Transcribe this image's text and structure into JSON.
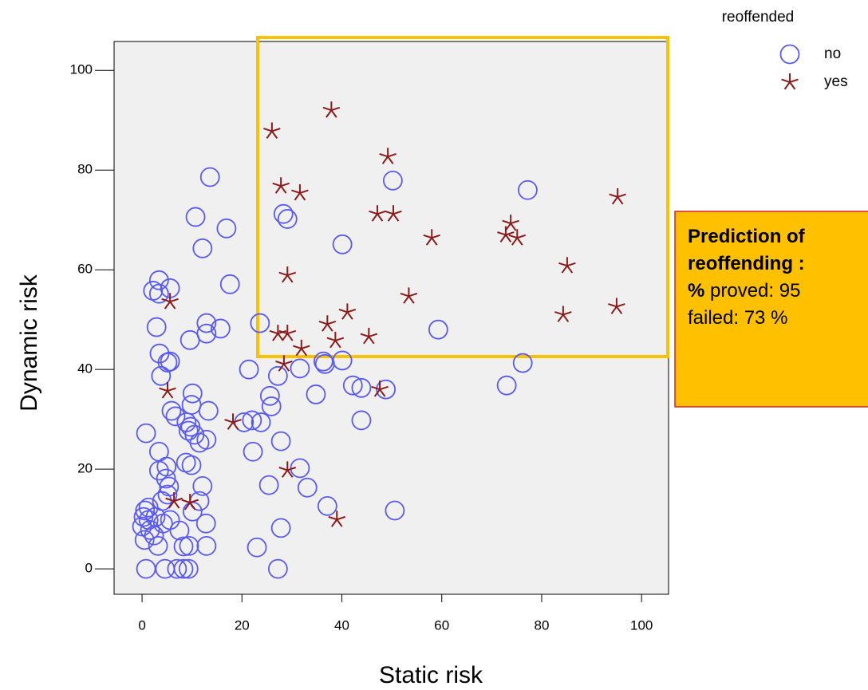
{
  "chart_data": {
    "type": "scatter",
    "x_label": "Static risk",
    "y_label": "Dynamic risk",
    "legend_title": "reoffended",
    "xlim": [
      -5.6,
      105.4
    ],
    "ylim": [
      -5.1,
      105.8
    ],
    "xticks": [
      0,
      20,
      40,
      60,
      80,
      100
    ],
    "yticks": [
      0,
      20,
      40,
      60,
      80,
      100
    ],
    "series": [
      {
        "name": "no",
        "color": "#5a5af0",
        "marker": "circle",
        "x": [
          13.6,
          50.2,
          77.2,
          10.7,
          28.3,
          29.1,
          16.9,
          40.1,
          12.1,
          3.4,
          17.6,
          5.6,
          2.2,
          3.4,
          2.9,
          12.9,
          23.6,
          15.7,
          12.9,
          59.3,
          9.6,
          3.5,
          5.1,
          5.6,
          36.3,
          36.6,
          40.1,
          76.2,
          3.8,
          21.4,
          27.2,
          31.6,
          42.2,
          43.9,
          48.8,
          73.0,
          10.1,
          25.6,
          34.8,
          9.9,
          25.9,
          5.9,
          6.7,
          13.3,
          8.9,
          9.7,
          9.3,
          22.0,
          23.8,
          20.4,
          43.9,
          0.8,
          10.5,
          11.5,
          12.9,
          27.8,
          22.2,
          3.4,
          8.8,
          9.9,
          4.9,
          3.4,
          31.6,
          4.8,
          5.4,
          12.1,
          25.4,
          33.1,
          5.1,
          11.5,
          1.3,
          4.0,
          0.3,
          0.6,
          1.3,
          2.7,
          10.1,
          12.8,
          37.1,
          50.6,
          5.6,
          4.2,
          0,
          1.6,
          7.5,
          27.8,
          2.4,
          0.5,
          3.2,
          8.3,
          9.4,
          12.9,
          23.0,
          0.8,
          4.6,
          7.0,
          8.3,
          9.3,
          27.2
        ],
        "y": [
          78.6,
          77.9,
          76.0,
          70.6,
          71.2,
          70.2,
          68.3,
          65.1,
          64.3,
          57.9,
          57.1,
          56.3,
          55.8,
          55.2,
          48.5,
          49.3,
          49.3,
          48.2,
          47.2,
          48.0,
          45.9,
          43.2,
          41.4,
          41.6,
          41.6,
          41.1,
          41.8,
          41.3,
          38.7,
          40.0,
          38.7,
          40.2,
          36.8,
          36.3,
          36.0,
          36.8,
          35.2,
          34.7,
          35.0,
          32.9,
          32.6,
          31.7,
          30.6,
          31.7,
          29.4,
          28.5,
          27.7,
          29.8,
          29.4,
          29.4,
          29.8,
          27.2,
          26.9,
          25.3,
          25.9,
          25.6,
          23.5,
          23.5,
          21.3,
          20.8,
          20.5,
          19.7,
          20.2,
          18.1,
          16.5,
          16.6,
          16.8,
          16.3,
          14.9,
          13.6,
          12.3,
          13.6,
          10.4,
          11.7,
          9.8,
          10.4,
          11.5,
          9.1,
          12.6,
          11.7,
          9.8,
          9.1,
          8.5,
          7.8,
          7.7,
          8.2,
          6.7,
          5.8,
          4.6,
          4.5,
          4.6,
          4.6,
          4.3,
          0,
          0,
          0,
          0,
          0,
          0
        ]
      },
      {
        "name": "yes",
        "color": "#8b1a1a",
        "marker": "star",
        "x": [
          37.9,
          26.0,
          49.2,
          27.8,
          31.6,
          95.2,
          47.1,
          50.3,
          73.8,
          58.0,
          72.8,
          75.1,
          85.1,
          29.1,
          53.4,
          5.6,
          95.0,
          41.1,
          84.3,
          37.1,
          27.2,
          29.1,
          45.4,
          38.7,
          31.9,
          28.4,
          47.6,
          5.1,
          18.2,
          29.1,
          6.4,
          9.6,
          39.0
        ],
        "y": [
          92.0,
          87.8,
          82.7,
          76.8,
          75.4,
          74.6,
          71.2,
          71.2,
          69.3,
          66.4,
          67.0,
          66.4,
          60.8,
          58.9,
          54.7,
          53.6,
          52.6,
          51.5,
          51.0,
          49.1,
          47.2,
          47.2,
          46.6,
          45.8,
          44.2,
          41.1,
          36.0,
          35.7,
          29.4,
          19.8,
          13.6,
          13.3,
          9.9
        ]
      }
    ],
    "annotation": {
      "lines": [
        [
          {
            "text": "Prediction of",
            "bold": true
          }
        ],
        [
          {
            "text": "reoffending :",
            "bold": true
          }
        ],
        [
          {
            "text": "%",
            "bold": true
          },
          {
            "text": " proved: 95",
            "bold": false
          }
        ],
        [
          {
            "text": "failed: 73 %",
            "bold": false
          }
        ]
      ]
    }
  }
}
